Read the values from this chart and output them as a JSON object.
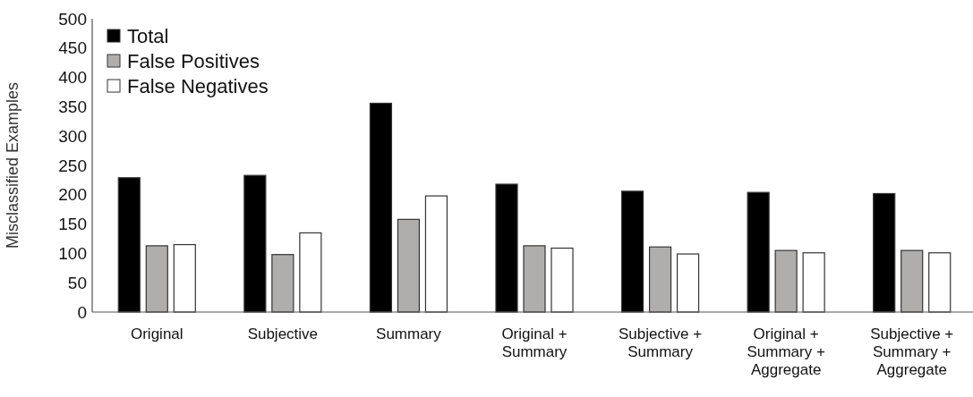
{
  "chart_data": {
    "type": "bar",
    "ylabel": "Misclassified Examples",
    "categories": [
      "Original",
      "Subjective",
      "Summary",
      "Original + Summary",
      "Subjective + Summary",
      "Original + Summary + Aggregate",
      "Subjective + Summary + Aggregate"
    ],
    "series": [
      {
        "name": "Total",
        "color": "#000000",
        "values": [
          229,
          233,
          356,
          218,
          206,
          204,
          202
        ]
      },
      {
        "name": "False Positives",
        "color": "#b0aeac",
        "values": [
          113,
          98,
          158,
          113,
          111,
          105,
          105
        ]
      },
      {
        "name": "False Negatives",
        "color": "#ffffff",
        "values": [
          115,
          135,
          198,
          109,
          99,
          101,
          101
        ]
      }
    ],
    "ylim": [
      0,
      500
    ],
    "yticks": [
      0,
      50,
      100,
      150,
      200,
      250,
      300,
      350,
      400,
      450,
      500
    ],
    "grid": false,
    "legend": "top left"
  }
}
